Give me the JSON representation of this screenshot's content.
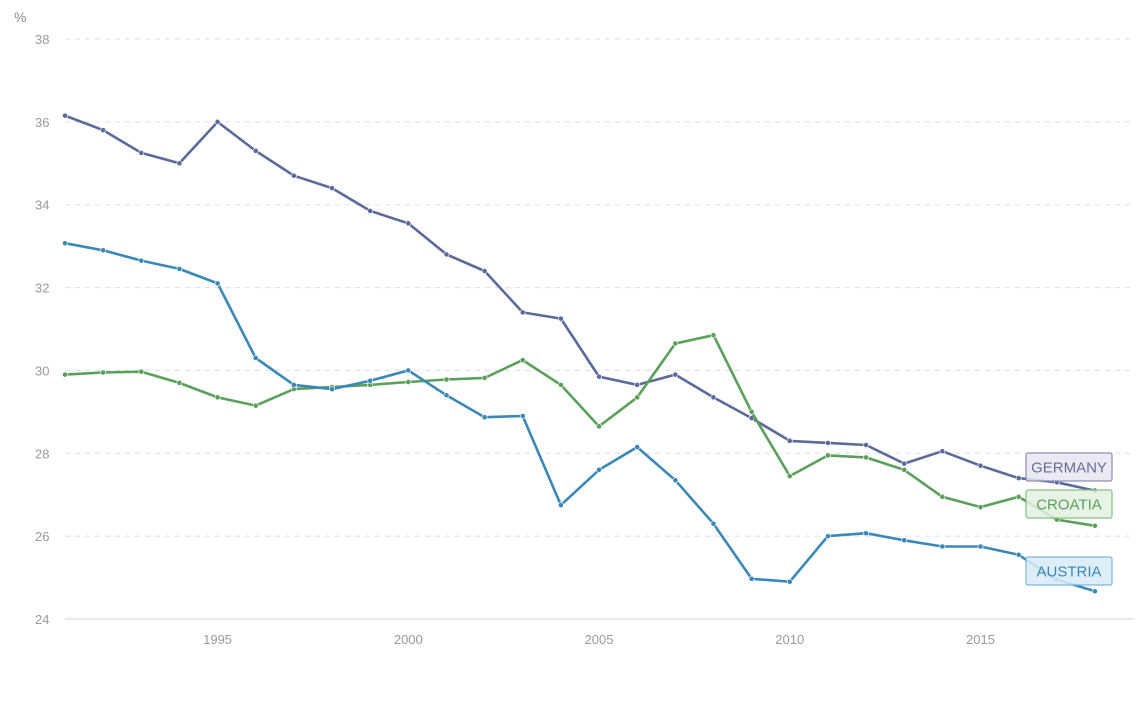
{
  "chart_data": {
    "type": "line",
    "unit_label": "%",
    "x": [
      1991,
      1992,
      1993,
      1994,
      1995,
      1996,
      1997,
      1998,
      1999,
      2000,
      2001,
      2002,
      2003,
      2004,
      2005,
      2006,
      2007,
      2008,
      2009,
      2010,
      2011,
      2012,
      2013,
      2014,
      2015,
      2016,
      2017,
      2018
    ],
    "x_ticks": [
      1995,
      2000,
      2005,
      2010,
      2015
    ],
    "y_ticks": [
      24,
      26,
      28,
      30,
      32,
      34,
      36,
      38
    ],
    "ylim": [
      24,
      38
    ],
    "xlim": [
      1991,
      2018.5
    ],
    "grid": true,
    "series": [
      {
        "name": "GERMANY",
        "color": "#5b6a9a",
        "label_bg": "#e6e6f3",
        "label_border": "#8d8db8",
        "label_text": "#6b6b9a",
        "values": [
          36.15,
          35.8,
          35.25,
          35.0,
          36.0,
          35.3,
          34.7,
          34.4,
          33.85,
          33.55,
          32.8,
          32.4,
          31.4,
          31.25,
          29.85,
          29.65,
          29.9,
          29.35,
          28.85,
          28.3,
          28.25,
          28.2,
          27.75,
          28.05,
          27.7,
          27.4,
          27.3,
          27.1
        ]
      },
      {
        "name": "CROATIA",
        "color": "#5aa05a",
        "label_bg": "#e3f2e1",
        "label_border": "#86c283",
        "label_text": "#5aa05a",
        "values": [
          29.9,
          29.95,
          29.97,
          29.7,
          29.35,
          29.15,
          29.55,
          29.6,
          29.65,
          29.72,
          29.78,
          29.82,
          30.25,
          29.65,
          28.65,
          29.35,
          30.65,
          30.85,
          29.0,
          27.45,
          27.95,
          27.9,
          27.6,
          26.95,
          26.7,
          26.95,
          26.4,
          26.25
        ]
      },
      {
        "name": "AUSTRIA",
        "color": "#3a88b8",
        "label_bg": "#d8ebf8",
        "label_border": "#79b8dd",
        "label_text": "#3a88b8",
        "values": [
          33.07,
          32.9,
          32.65,
          32.45,
          32.1,
          30.3,
          29.65,
          29.55,
          29.75,
          30.0,
          29.4,
          28.87,
          28.9,
          26.75,
          27.6,
          28.15,
          27.35,
          26.3,
          24.97,
          24.9,
          26.0,
          26.07,
          25.9,
          25.75,
          25.75,
          25.55,
          24.95,
          24.67
        ]
      }
    ]
  }
}
